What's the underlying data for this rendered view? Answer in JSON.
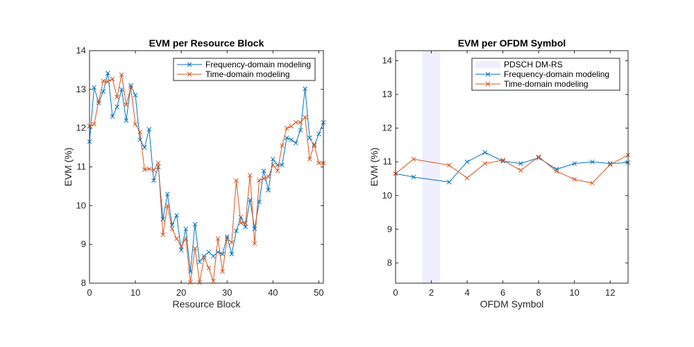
{
  "chart_data": [
    {
      "type": "line",
      "title": "EVM per Resource Block",
      "xlabel": "Resource Block",
      "ylabel": "EVM (%)",
      "xlim": [
        0,
        51
      ],
      "ylim": [
        8,
        14
      ],
      "xticks": [
        0,
        10,
        20,
        30,
        40,
        50
      ],
      "yticks": [
        8,
        9,
        10,
        11,
        12,
        13,
        14
      ],
      "grid": false,
      "legend_position": "top-right",
      "series": [
        {
          "name": "Frequency-domain modeling",
          "color": "#0072BD",
          "marker": "x",
          "x": [
            0,
            1,
            2,
            3,
            4,
            5,
            6,
            7,
            8,
            9,
            10,
            11,
            12,
            13,
            14,
            15,
            16,
            17,
            18,
            19,
            20,
            21,
            22,
            23,
            24,
            25,
            26,
            27,
            28,
            29,
            30,
            31,
            32,
            33,
            34,
            35,
            36,
            37,
            38,
            39,
            40,
            41,
            42,
            43,
            44,
            45,
            46,
            47,
            48,
            49,
            50,
            51
          ],
          "values": [
            11.65,
            13.05,
            12.65,
            12.95,
            13.42,
            12.3,
            12.55,
            13.0,
            12.2,
            13.1,
            12.85,
            11.7,
            11.5,
            11.97,
            10.65,
            11.0,
            9.65,
            10.3,
            9.5,
            9.75,
            8.85,
            9.4,
            8.3,
            9.52,
            8.55,
            8.7,
            8.8,
            8.7,
            8.8,
            8.75,
            9.2,
            8.75,
            9.35,
            9.7,
            9.45,
            10.15,
            9.4,
            10.1,
            10.9,
            10.4,
            11.2,
            11.05,
            11.05,
            11.75,
            11.7,
            11.62,
            11.95,
            13.02,
            11.75,
            11.55,
            11.85,
            12.15
          ]
        },
        {
          "name": "Time-domain modeling",
          "color": "#D95319",
          "marker": "x",
          "x": [
            0,
            1,
            2,
            3,
            4,
            5,
            6,
            7,
            8,
            9,
            10,
            11,
            12,
            13,
            14,
            15,
            16,
            17,
            18,
            19,
            20,
            21,
            22,
            23,
            24,
            25,
            26,
            27,
            28,
            29,
            30,
            31,
            32,
            33,
            34,
            35,
            36,
            37,
            38,
            39,
            40,
            41,
            42,
            43,
            44,
            45,
            46,
            47,
            48,
            49,
            50,
            51
          ],
          "values": [
            12.05,
            12.1,
            12.7,
            13.22,
            13.2,
            13.27,
            12.8,
            13.38,
            12.6,
            13.05,
            12.1,
            11.9,
            10.93,
            10.95,
            10.92,
            11.1,
            9.25,
            10.0,
            9.4,
            9.15,
            8.95,
            9.15,
            8.02,
            8.9,
            8.02,
            8.65,
            8.4,
            8.05,
            9.15,
            8.3,
            9.15,
            9.05,
            10.65,
            9.55,
            9.55,
            10.78,
            9.02,
            10.65,
            10.7,
            10.75,
            11.05,
            10.9,
            11.55,
            12.0,
            12.05,
            12.15,
            12.15,
            12.28,
            11.2,
            11.58,
            11.1,
            11.1
          ]
        }
      ]
    },
    {
      "type": "line",
      "title": "EVM per OFDM Symbol",
      "xlabel": "OFDM Symbol",
      "ylabel": "EVM (%)",
      "xlim": [
        0,
        13
      ],
      "ylim": [
        7.4,
        14.3
      ],
      "xticks": [
        0,
        2,
        4,
        6,
        8,
        10,
        12
      ],
      "yticks": [
        8,
        9,
        10,
        11,
        12,
        13,
        14
      ],
      "grid": false,
      "legend_position": "top-right",
      "shaded_regions": [
        {
          "name": "PDSCH DM-RS",
          "x0": 1.5,
          "x1": 2.5,
          "color": "#EEEEFF"
        }
      ],
      "series": [
        {
          "name": "Frequency-domain modeling",
          "color": "#0072BD",
          "marker": "x",
          "x": [
            0,
            1,
            3,
            4,
            5,
            6,
            7,
            8,
            9,
            10,
            11,
            12,
            13
          ],
          "values": [
            10.65,
            10.55,
            10.4,
            11.0,
            11.28,
            11.02,
            10.95,
            11.12,
            10.78,
            10.95,
            11.0,
            10.95,
            10.98
          ]
        },
        {
          "name": "Time-domain modeling",
          "color": "#D95319",
          "marker": "x",
          "x": [
            0,
            1,
            3,
            4,
            5,
            6,
            7,
            8,
            9,
            10,
            11,
            12,
            13
          ],
          "values": [
            10.65,
            11.08,
            10.9,
            10.52,
            10.95,
            11.05,
            10.75,
            11.15,
            10.72,
            10.48,
            10.37,
            10.92,
            11.2
          ]
        }
      ]
    }
  ]
}
